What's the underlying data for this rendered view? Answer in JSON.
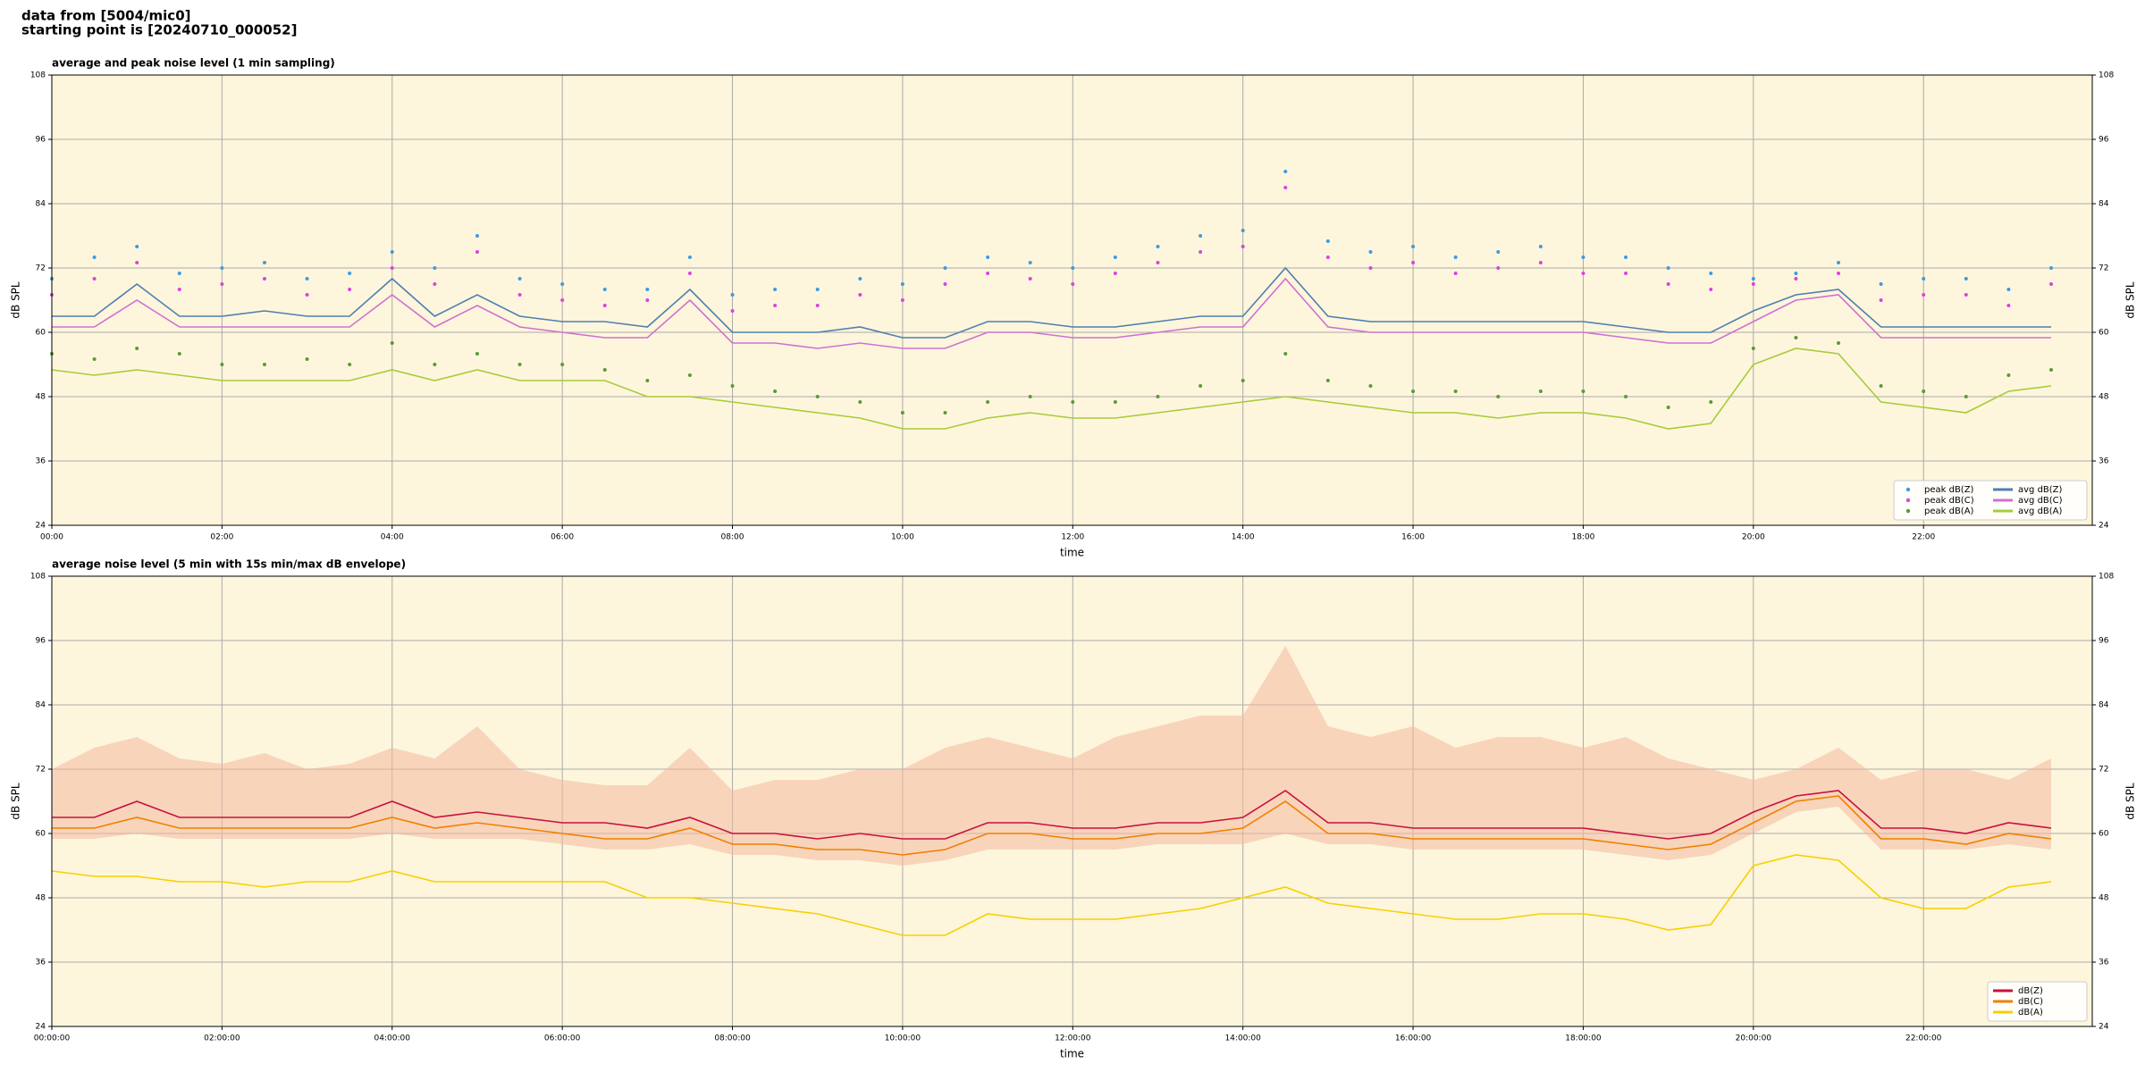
{
  "header": {
    "lines": [
      "data from [5004/mic0]",
      "starting point is [20240710_000052]"
    ]
  },
  "chart_data": [
    {
      "type": "line",
      "title": "average and peak noise level (1 min sampling)",
      "x_label": "time",
      "y_label": "dB SPL",
      "x": [
        "00:00",
        "00:30",
        "01:00",
        "01:30",
        "02:00",
        "02:30",
        "03:00",
        "03:30",
        "04:00",
        "04:30",
        "05:00",
        "05:30",
        "06:00",
        "06:30",
        "07:00",
        "07:30",
        "08:00",
        "08:30",
        "09:00",
        "09:30",
        "10:00",
        "10:30",
        "11:00",
        "11:30",
        "12:00",
        "12:30",
        "13:00",
        "13:30",
        "14:00",
        "14:30",
        "15:00",
        "15:30",
        "16:00",
        "16:30",
        "17:00",
        "17:30",
        "18:00",
        "18:30",
        "19:00",
        "19:30",
        "20:00",
        "20:30",
        "21:00",
        "21:30",
        "22:00",
        "22:30",
        "23:00",
        "23:30"
      ],
      "xlim": [
        "00:00",
        "23:59"
      ],
      "xticks": [
        "00:00",
        "02:00",
        "04:00",
        "06:00",
        "08:00",
        "10:00",
        "12:00",
        "14:00",
        "16:00",
        "18:00",
        "20:00",
        "22:00"
      ],
      "ylim": [
        24,
        108
      ],
      "yticks": [
        24,
        36,
        48,
        60,
        72,
        84,
        96,
        108
      ],
      "grid": true,
      "legend": "lower right",
      "legend_columns": 2,
      "background": "#fdf6dc",
      "series": [
        {
          "name": "peak dB(Z)",
          "kind": "scatter",
          "color": "#3d9be0",
          "values": [
            70,
            74,
            76,
            71,
            72,
            73,
            70,
            71,
            75,
            72,
            78,
            70,
            69,
            68,
            68,
            74,
            67,
            68,
            68,
            70,
            69,
            72,
            74,
            73,
            72,
            74,
            76,
            78,
            79,
            90,
            77,
            75,
            76,
            74,
            75,
            76,
            74,
            74,
            72,
            71,
            70,
            71,
            73,
            69,
            70,
            70,
            68,
            72
          ]
        },
        {
          "name": "peak dB(C)",
          "kind": "scatter",
          "color": "#e040e0",
          "values": [
            67,
            70,
            73,
            68,
            69,
            70,
            67,
            68,
            72,
            69,
            75,
            67,
            66,
            65,
            66,
            71,
            64,
            65,
            65,
            67,
            66,
            69,
            71,
            70,
            69,
            71,
            73,
            75,
            76,
            87,
            74,
            72,
            73,
            71,
            72,
            73,
            71,
            71,
            69,
            68,
            69,
            70,
            71,
            66,
            67,
            67,
            65,
            69
          ]
        },
        {
          "name": "peak dB(A)",
          "kind": "scatter",
          "color": "#5a9a3a",
          "values": [
            56,
            55,
            57,
            56,
            54,
            54,
            55,
            54,
            58,
            54,
            56,
            54,
            54,
            53,
            51,
            52,
            50,
            49,
            48,
            47,
            45,
            45,
            47,
            48,
            47,
            47,
            48,
            50,
            51,
            56,
            51,
            50,
            49,
            49,
            48,
            49,
            49,
            48,
            46,
            47,
            57,
            59,
            58,
            50,
            49,
            48,
            52,
            53
          ]
        },
        {
          "name": "avg dB(Z)",
          "kind": "line",
          "color": "#4f7fb0",
          "values": [
            63,
            63,
            69,
            63,
            63,
            64,
            63,
            63,
            70,
            63,
            67,
            63,
            62,
            62,
            61,
            68,
            60,
            60,
            60,
            61,
            59,
            59,
            62,
            62,
            61,
            61,
            62,
            63,
            63,
            72,
            63,
            62,
            62,
            62,
            62,
            62,
            62,
            61,
            60,
            60,
            64,
            67,
            68,
            61,
            61,
            61,
            61,
            61
          ]
        },
        {
          "name": "avg dB(C)",
          "kind": "line",
          "color": "#d070d0",
          "values": [
            61,
            61,
            66,
            61,
            61,
            61,
            61,
            61,
            67,
            61,
            65,
            61,
            60,
            59,
            59,
            66,
            58,
            58,
            57,
            58,
            57,
            57,
            60,
            60,
            59,
            59,
            60,
            61,
            61,
            70,
            61,
            60,
            60,
            60,
            60,
            60,
            60,
            59,
            58,
            58,
            62,
            66,
            67,
            59,
            59,
            59,
            59,
            59
          ]
        },
        {
          "name": "avg dB(A)",
          "kind": "line",
          "color": "#a6cc3a",
          "values": [
            53,
            52,
            53,
            52,
            51,
            51,
            51,
            51,
            53,
            51,
            53,
            51,
            51,
            51,
            48,
            48,
            47,
            46,
            45,
            44,
            42,
            42,
            44,
            45,
            44,
            44,
            45,
            46,
            47,
            48,
            47,
            46,
            45,
            45,
            44,
            45,
            45,
            44,
            42,
            43,
            54,
            57,
            56,
            47,
            46,
            45,
            49,
            50
          ]
        }
      ]
    },
    {
      "type": "line",
      "title": "average noise level (5 min with 15s min/max dB envelope)",
      "x_label": "time",
      "y_label": "dB SPL",
      "x": [
        "00:00",
        "00:30",
        "01:00",
        "01:30",
        "02:00",
        "02:30",
        "03:00",
        "03:30",
        "04:00",
        "04:30",
        "05:00",
        "05:30",
        "06:00",
        "06:30",
        "07:00",
        "07:30",
        "08:00",
        "08:30",
        "09:00",
        "09:30",
        "10:00",
        "10:30",
        "11:00",
        "11:30",
        "12:00",
        "12:30",
        "13:00",
        "13:30",
        "14:00",
        "14:30",
        "15:00",
        "15:30",
        "16:00",
        "16:30",
        "17:00",
        "17:30",
        "18:00",
        "18:30",
        "19:00",
        "19:30",
        "20:00",
        "20:30",
        "21:00",
        "21:30",
        "22:00",
        "22:30",
        "23:00",
        "23:30"
      ],
      "xlim": [
        "00:00",
        "23:59"
      ],
      "xticks": [
        "00:00:00",
        "02:00:00",
        "04:00:00",
        "06:00:00",
        "08:00:00",
        "10:00:00",
        "12:00:00",
        "14:00:00",
        "16:00:00",
        "18:00:00",
        "20:00:00",
        "22:00:00"
      ],
      "ylim": [
        24,
        108
      ],
      "yticks": [
        24,
        36,
        48,
        60,
        72,
        84,
        96,
        108
      ],
      "grid": true,
      "legend": "lower right",
      "legend_columns": 1,
      "background": "#fdf6dc",
      "envelope": {
        "color": "#f4b8a0",
        "lower": [
          59,
          59,
          60,
          59,
          59,
          59,
          59,
          59,
          60,
          59,
          59,
          59,
          58,
          57,
          57,
          58,
          56,
          56,
          55,
          55,
          54,
          55,
          57,
          57,
          57,
          57,
          58,
          58,
          58,
          60,
          58,
          58,
          57,
          57,
          57,
          57,
          57,
          56,
          55,
          56,
          60,
          64,
          65,
          57,
          57,
          57,
          58,
          57
        ],
        "upper": [
          72,
          76,
          78,
          74,
          73,
          75,
          72,
          73,
          76,
          74,
          80,
          72,
          70,
          69,
          69,
          76,
          68,
          70,
          70,
          72,
          72,
          76,
          78,
          76,
          74,
          78,
          80,
          82,
          82,
          95,
          80,
          78,
          80,
          76,
          78,
          78,
          76,
          78,
          74,
          72,
          70,
          72,
          76,
          70,
          72,
          72,
          70,
          74
        ]
      },
      "series": [
        {
          "name": "dB(Z)",
          "kind": "line",
          "color": "#c8103c",
          "values": [
            63,
            63,
            66,
            63,
            63,
            63,
            63,
            63,
            66,
            63,
            64,
            63,
            62,
            62,
            61,
            63,
            60,
            60,
            59,
            60,
            59,
            59,
            62,
            62,
            61,
            61,
            62,
            62,
            63,
            68,
            62,
            62,
            61,
            61,
            61,
            61,
            61,
            60,
            59,
            60,
            64,
            67,
            68,
            61,
            61,
            60,
            62,
            61
          ]
        },
        {
          "name": "dB(C)",
          "kind": "line",
          "color": "#f08000",
          "values": [
            61,
            61,
            63,
            61,
            61,
            61,
            61,
            61,
            63,
            61,
            62,
            61,
            60,
            59,
            59,
            61,
            58,
            58,
            57,
            57,
            56,
            57,
            60,
            60,
            59,
            59,
            60,
            60,
            61,
            66,
            60,
            60,
            59,
            59,
            59,
            59,
            59,
            58,
            57,
            58,
            62,
            66,
            67,
            59,
            59,
            58,
            60,
            59
          ]
        },
        {
          "name": "dB(A)",
          "kind": "line",
          "color": "#f7d000",
          "values": [
            53,
            52,
            52,
            51,
            51,
            50,
            51,
            51,
            53,
            51,
            51,
            51,
            51,
            51,
            48,
            48,
            47,
            46,
            45,
            43,
            41,
            41,
            45,
            44,
            44,
            44,
            45,
            46,
            48,
            50,
            47,
            46,
            45,
            44,
            44,
            45,
            45,
            44,
            42,
            43,
            54,
            56,
            55,
            48,
            46,
            46,
            50,
            51
          ]
        }
      ]
    }
  ]
}
